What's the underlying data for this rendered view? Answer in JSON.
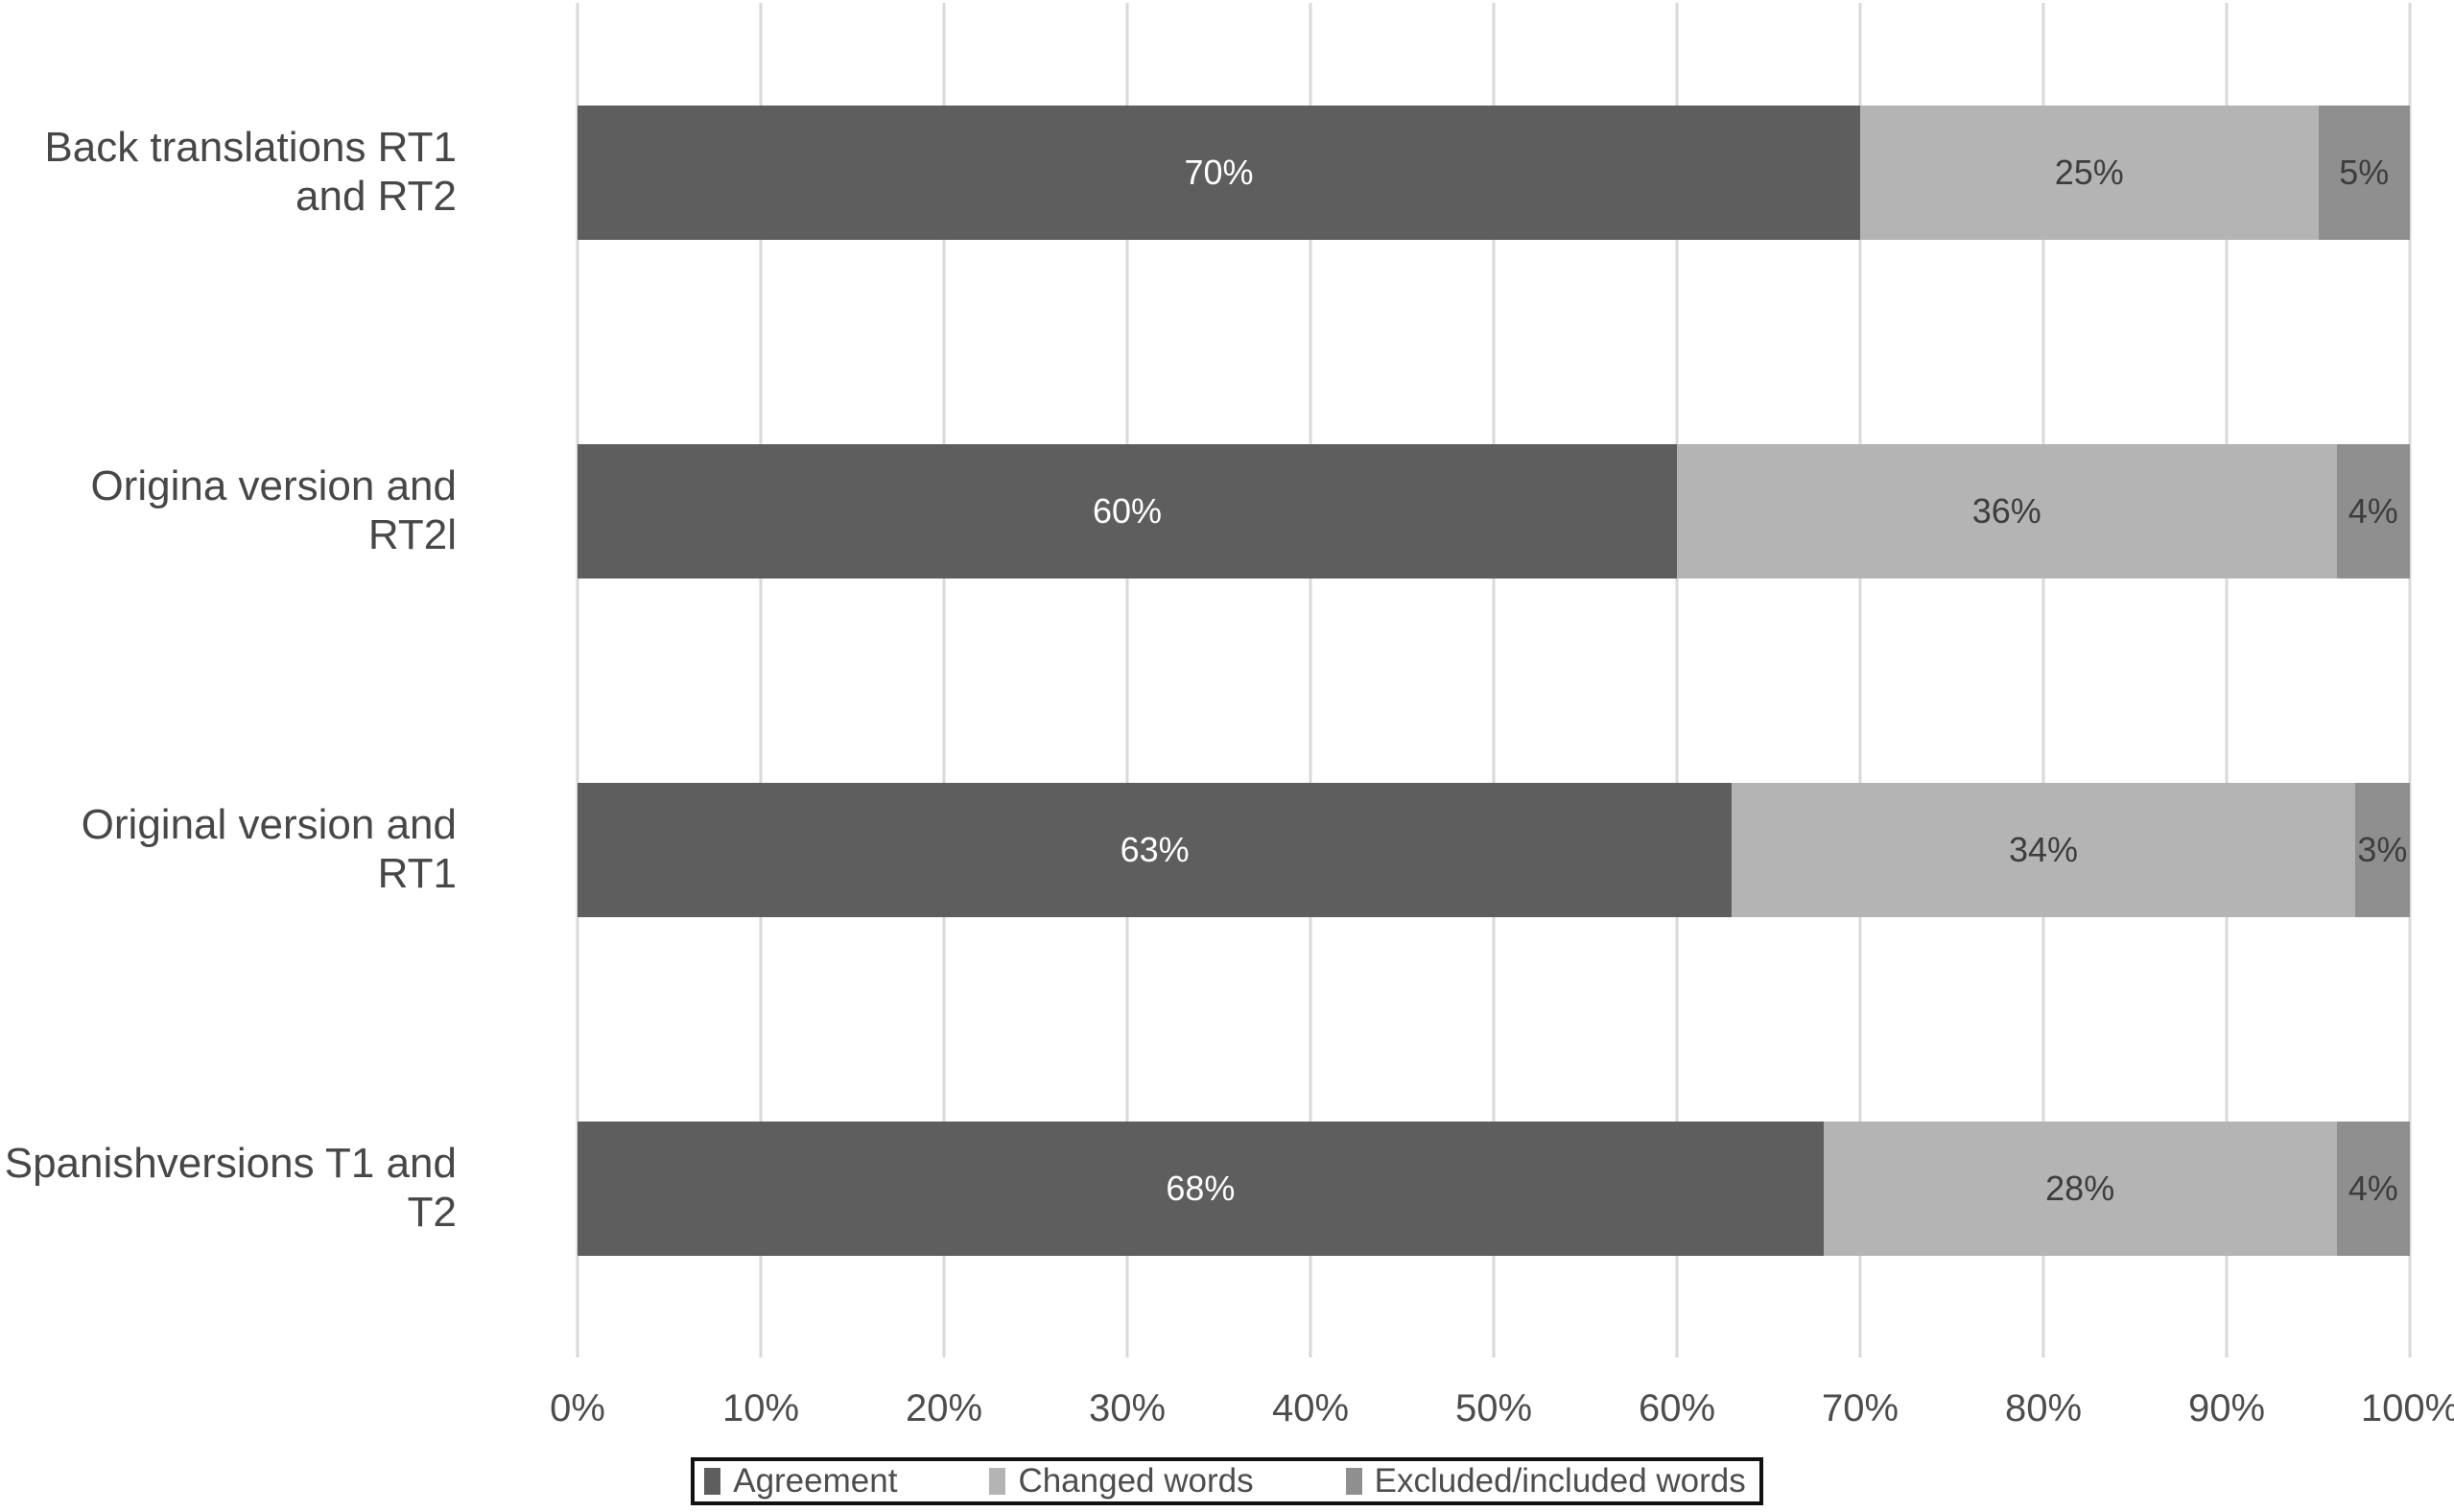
{
  "chart_data": {
    "type": "bar",
    "orientation": "horizontal",
    "stacked": true,
    "title": "",
    "categories": [
      "Back translations RT1 and RT2",
      "Origina version and RT2l",
      "Original version and RT1",
      "Spanishversions T1 and T2"
    ],
    "series": [
      {
        "name": "Agreement",
        "color": "#5e5e5e",
        "label_color": "#ffffff",
        "values": [
          70,
          60,
          63,
          68
        ]
      },
      {
        "name": "Changed words",
        "color": "#b4b4b4",
        "label_color": "#3d3d3d",
        "values": [
          25,
          36,
          34,
          28
        ]
      },
      {
        "name": "Excluded/included words",
        "color": "#8f8f8f",
        "label_color": "#3d3d3d",
        "values": [
          5,
          4,
          3,
          4
        ]
      }
    ],
    "value_suffix": "%",
    "x_ticks": [
      "0%",
      "10%",
      "20%",
      "30%",
      "40%",
      "50%",
      "60%",
      "70%",
      "80%",
      "90%",
      "100%"
    ],
    "xlim": [
      0,
      100
    ],
    "grid": true,
    "legend_position": "bottom"
  },
  "colors": {
    "background": "#ffffff",
    "gridline": "#d9d9d9",
    "category_text": "#474747",
    "axis_text": "#4d4d4d",
    "legend_text": "#4d4d4d",
    "legend_border": "#111111"
  }
}
